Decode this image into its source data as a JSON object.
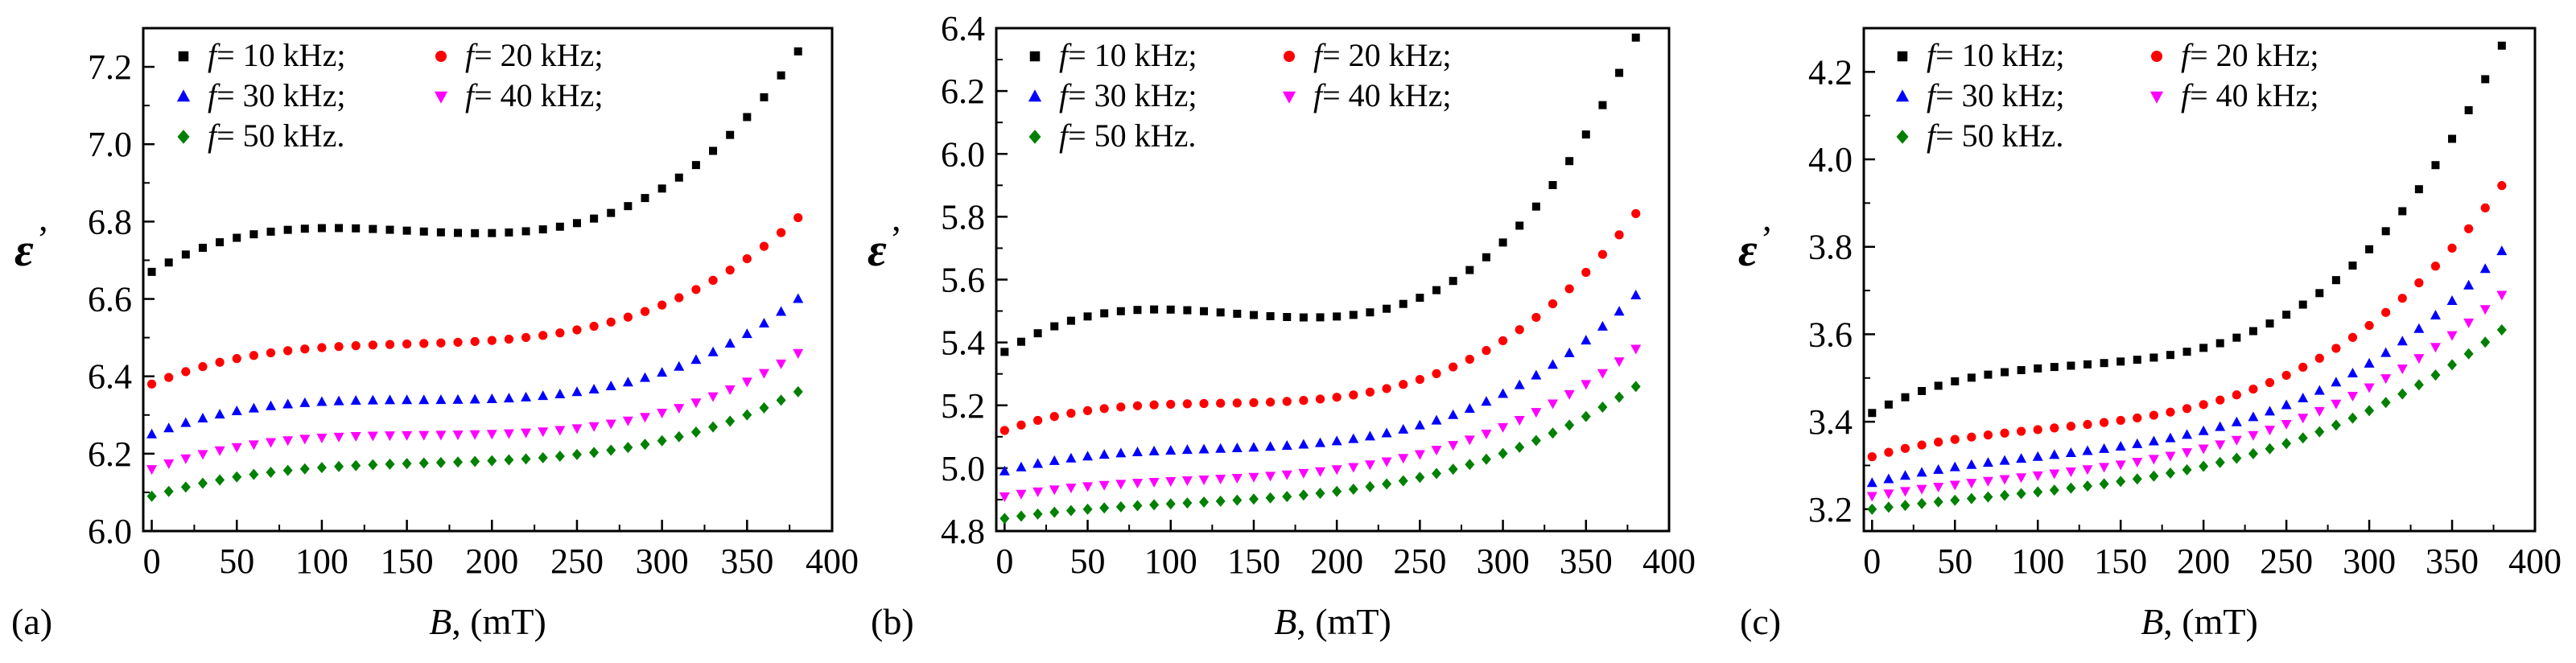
{
  "figure": {
    "legend_entries": [
      {
        "var": "f",
        "text": "= 10 kHz;",
        "color": "#000000",
        "marker": "square"
      },
      {
        "var": "f",
        "text": "= 20 kHz;",
        "color": "#ff0000",
        "marker": "circle"
      },
      {
        "var": "f",
        "text": "= 30 kHz;",
        "color": "#0000ff",
        "marker": "triangle-up"
      },
      {
        "var": "f",
        "text": "= 40 kHz;",
        "color": "#ff00ff",
        "marker": "triangle-down"
      },
      {
        "var": "f",
        "text": "= 50 kHz.",
        "color": "#008000",
        "marker": "diamond"
      }
    ]
  },
  "chart_data": [
    {
      "type": "scatter",
      "panel_label": "(a)",
      "xlabel_var": "B",
      "xlabel_unit": ", (mT)",
      "ylabel_var": "ε",
      "ylabel_prime": "’",
      "xlim": [
        -5,
        400
      ],
      "ylim": [
        6.0,
        7.3
      ],
      "xticks": [
        0,
        50,
        100,
        150,
        200,
        250,
        300,
        350,
        400
      ],
      "yticks": [
        6.0,
        6.2,
        6.4,
        6.6,
        6.8,
        7.0,
        7.2
      ],
      "ytick_labels": [
        "6.0",
        "6.2",
        "6.4",
        "6.6",
        "6.8",
        "7.0",
        "7.2"
      ],
      "x_start": 0,
      "x_end": 380,
      "x_step": 10,
      "series": [
        {
          "name": "f = 10 kHz",
          "values": [
            6.67,
            6.77,
            6.85,
            7.24
          ]
        },
        {
          "name": "f = 20 kHz",
          "values": [
            6.38,
            6.49,
            6.56,
            6.81
          ]
        },
        {
          "name": "f = 30 kHz",
          "values": [
            6.25,
            6.34,
            6.39,
            6.6
          ]
        },
        {
          "name": "f = 40 kHz",
          "values": [
            6.16,
            6.25,
            6.29,
            6.46
          ]
        },
        {
          "name": "f = 50 kHz",
          "values": [
            6.09,
            6.18,
            6.22,
            6.36
          ]
        }
      ]
    },
    {
      "type": "scatter",
      "panel_label": "(b)",
      "xlabel_var": "B",
      "xlabel_unit": ", (mT)",
      "ylabel_var": "ε",
      "ylabel_prime": "’",
      "xlim": [
        -5,
        400
      ],
      "ylim": [
        4.8,
        6.4
      ],
      "xticks": [
        0,
        50,
        100,
        150,
        200,
        250,
        300,
        350,
        400
      ],
      "yticks": [
        4.8,
        5.0,
        5.2,
        5.4,
        5.6,
        5.8,
        6.0,
        6.2,
        6.4
      ],
      "ytick_labels": [
        "4.8",
        "5.0",
        "5.2",
        "5.4",
        "5.6",
        "5.8",
        "6.0",
        "6.2",
        "6.4"
      ],
      "x_start": 0,
      "x_end": 380,
      "x_step": 10,
      "series": [
        {
          "name": "f = 10 kHz",
          "values": [
            5.37,
            5.48,
            5.65,
            6.37
          ]
        },
        {
          "name": "f = 20 kHz",
          "values": [
            5.12,
            5.22,
            5.36,
            5.81
          ]
        },
        {
          "name": "f = 30 kHz",
          "values": [
            4.99,
            5.08,
            5.2,
            5.55
          ]
        },
        {
          "name": "f = 40 kHz",
          "values": [
            4.91,
            4.99,
            5.1,
            5.38
          ]
        },
        {
          "name": "f = 50 kHz",
          "values": [
            4.84,
            4.92,
            5.02,
            5.26
          ]
        }
      ]
    },
    {
      "type": "scatter",
      "panel_label": "(c)",
      "xlabel_var": "B",
      "xlabel_unit": ", (mT)",
      "ylabel_var": "ε",
      "ylabel_prime": "’",
      "xlim": [
        -5,
        400
      ],
      "ylim": [
        3.15,
        4.3
      ],
      "xticks": [
        0,
        50,
        100,
        150,
        200,
        250,
        300,
        350,
        400
      ],
      "yticks": [
        3.2,
        3.4,
        3.6,
        3.8,
        4.0,
        4.2
      ],
      "ytick_labels": [
        "3.2",
        "3.4",
        "3.6",
        "3.8",
        "4.0",
        "4.2"
      ],
      "x_start": 0,
      "x_end": 380,
      "x_step": 10,
      "series": [
        {
          "name": "f = 10 kHz",
          "values": [
            3.42,
            3.56,
            3.74,
            4.26
          ]
        },
        {
          "name": "f = 20 kHz",
          "values": [
            3.32,
            3.43,
            3.58,
            3.94
          ]
        },
        {
          "name": "f = 30 kHz",
          "values": [
            3.26,
            3.37,
            3.5,
            3.79
          ]
        },
        {
          "name": "f = 40 kHz",
          "values": [
            3.23,
            3.33,
            3.45,
            3.69
          ]
        },
        {
          "name": "f = 50 kHz",
          "values": [
            3.2,
            3.29,
            3.4,
            3.61
          ]
        }
      ]
    }
  ]
}
